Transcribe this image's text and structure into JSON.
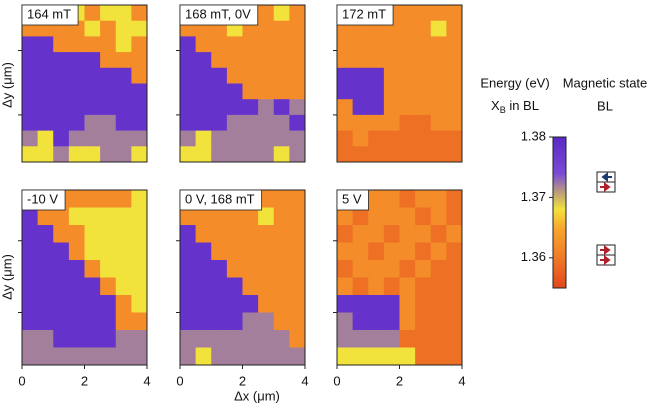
{
  "chart_data": {
    "type": "heatmap",
    "xlabel": "Δx (μm)",
    "ylabel": "Δy (μm)",
    "xlim": [
      0,
      4
    ],
    "xticks": [
      0,
      2,
      4
    ],
    "panels": [
      {
        "label": "164 mT",
        "values": [
          [
            1.362,
            1.362,
            1.362,
            1.368,
            1.362,
            1.368,
            1.368,
            1.362
          ],
          [
            1.362,
            1.362,
            1.362,
            1.362,
            1.368,
            1.362,
            1.368,
            1.368
          ],
          [
            1.378,
            1.378,
            1.362,
            1.362,
            1.362,
            1.362,
            1.368,
            1.362
          ],
          [
            1.378,
            1.378,
            1.378,
            1.378,
            1.378,
            1.362,
            1.362,
            1.362
          ],
          [
            1.378,
            1.378,
            1.378,
            1.378,
            1.378,
            1.378,
            1.378,
            1.362
          ],
          [
            1.378,
            1.378,
            1.378,
            1.378,
            1.378,
            1.378,
            1.378,
            1.378
          ],
          [
            1.378,
            1.378,
            1.378,
            1.378,
            1.378,
            1.378,
            1.378,
            1.378
          ],
          [
            1.378,
            1.378,
            1.378,
            1.378,
            1.372,
            1.372,
            1.378,
            1.378
          ],
          [
            1.372,
            1.368,
            1.378,
            1.372,
            1.372,
            1.372,
            1.372,
            1.372
          ],
          [
            1.368,
            1.368,
            1.372,
            1.368,
            1.368,
            1.372,
            1.372,
            1.368
          ]
        ]
      },
      {
        "label": "168 mT, 0V",
        "values": [
          [
            1.362,
            1.362,
            1.362,
            1.362,
            1.362,
            1.362,
            1.368,
            1.362
          ],
          [
            1.362,
            1.362,
            1.362,
            1.368,
            1.362,
            1.362,
            1.362,
            1.362
          ],
          [
            1.378,
            1.362,
            1.362,
            1.362,
            1.362,
            1.362,
            1.362,
            1.362
          ],
          [
            1.378,
            1.378,
            1.362,
            1.362,
            1.362,
            1.362,
            1.362,
            1.362
          ],
          [
            1.378,
            1.378,
            1.378,
            1.362,
            1.362,
            1.362,
            1.362,
            1.362
          ],
          [
            1.378,
            1.378,
            1.378,
            1.378,
            1.362,
            1.362,
            1.362,
            1.362
          ],
          [
            1.378,
            1.378,
            1.378,
            1.378,
            1.378,
            1.372,
            1.378,
            1.372
          ],
          [
            1.378,
            1.378,
            1.378,
            1.372,
            1.372,
            1.372,
            1.372,
            1.378
          ],
          [
            1.372,
            1.368,
            1.372,
            1.372,
            1.372,
            1.372,
            1.372,
            1.372
          ],
          [
            1.368,
            1.368,
            1.372,
            1.372,
            1.372,
            1.372,
            1.368,
            1.372
          ]
        ]
      },
      {
        "label": "172 mT",
        "values": [
          [
            1.362,
            1.362,
            1.362,
            1.362,
            1.362,
            1.362,
            1.362,
            1.362
          ],
          [
            1.362,
            1.362,
            1.362,
            1.362,
            1.362,
            1.362,
            1.368,
            1.362
          ],
          [
            1.362,
            1.362,
            1.362,
            1.362,
            1.362,
            1.362,
            1.362,
            1.362
          ],
          [
            1.362,
            1.362,
            1.362,
            1.362,
            1.362,
            1.362,
            1.362,
            1.362
          ],
          [
            1.378,
            1.378,
            1.378,
            1.362,
            1.362,
            1.362,
            1.362,
            1.362
          ],
          [
            1.378,
            1.378,
            1.378,
            1.362,
            1.362,
            1.362,
            1.362,
            1.362
          ],
          [
            1.362,
            1.378,
            1.378,
            1.362,
            1.362,
            1.362,
            1.362,
            1.362
          ],
          [
            1.362,
            1.362,
            1.362,
            1.362,
            1.359,
            1.359,
            1.362,
            1.362
          ],
          [
            1.359,
            1.362,
            1.359,
            1.359,
            1.359,
            1.359,
            1.359,
            1.359
          ],
          [
            1.359,
            1.359,
            1.359,
            1.359,
            1.359,
            1.359,
            1.359,
            1.359
          ]
        ]
      },
      {
        "label": "-10 V",
        "values": [
          [
            1.362,
            1.362,
            1.362,
            1.362,
            1.362,
            1.362,
            1.362,
            1.368
          ],
          [
            1.378,
            1.362,
            1.362,
            1.368,
            1.368,
            1.368,
            1.368,
            1.368
          ],
          [
            1.378,
            1.378,
            1.362,
            1.362,
            1.368,
            1.368,
            1.368,
            1.368
          ],
          [
            1.378,
            1.378,
            1.378,
            1.362,
            1.368,
            1.368,
            1.368,
            1.368
          ],
          [
            1.378,
            1.378,
            1.378,
            1.378,
            1.362,
            1.368,
            1.368,
            1.368
          ],
          [
            1.378,
            1.378,
            1.378,
            1.378,
            1.378,
            1.362,
            1.368,
            1.368
          ],
          [
            1.378,
            1.378,
            1.378,
            1.378,
            1.378,
            1.378,
            1.362,
            1.368
          ],
          [
            1.378,
            1.378,
            1.378,
            1.378,
            1.378,
            1.378,
            1.362,
            1.362
          ],
          [
            1.372,
            1.372,
            1.378,
            1.378,
            1.378,
            1.378,
            1.372,
            1.372
          ],
          [
            1.372,
            1.372,
            1.372,
            1.372,
            1.372,
            1.372,
            1.372,
            1.372
          ]
        ]
      },
      {
        "label": "0 V, 168 mT",
        "values": [
          [
            1.362,
            1.362,
            1.362,
            1.362,
            1.362,
            1.362,
            1.362,
            1.362
          ],
          [
            1.362,
            1.362,
            1.362,
            1.362,
            1.362,
            1.368,
            1.362,
            1.362
          ],
          [
            1.378,
            1.362,
            1.362,
            1.362,
            1.362,
            1.362,
            1.362,
            1.362
          ],
          [
            1.378,
            1.378,
            1.362,
            1.362,
            1.362,
            1.362,
            1.362,
            1.362
          ],
          [
            1.378,
            1.378,
            1.378,
            1.362,
            1.362,
            1.362,
            1.362,
            1.362
          ],
          [
            1.378,
            1.378,
            1.378,
            1.378,
            1.362,
            1.362,
            1.362,
            1.362
          ],
          [
            1.378,
            1.378,
            1.378,
            1.378,
            1.378,
            1.362,
            1.362,
            1.362
          ],
          [
            1.378,
            1.378,
            1.378,
            1.378,
            1.372,
            1.372,
            1.362,
            1.362
          ],
          [
            1.372,
            1.372,
            1.372,
            1.372,
            1.372,
            1.372,
            1.372,
            1.362
          ],
          [
            1.372,
            1.368,
            1.372,
            1.372,
            1.372,
            1.372,
            1.372,
            1.372
          ]
        ]
      },
      {
        "label": "5 V",
        "values": [
          [
            1.359,
            1.362,
            1.362,
            1.362,
            1.359,
            1.362,
            1.362,
            1.359
          ],
          [
            1.362,
            1.359,
            1.362,
            1.362,
            1.362,
            1.359,
            1.362,
            1.359
          ],
          [
            1.359,
            1.362,
            1.362,
            1.359,
            1.362,
            1.362,
            1.359,
            1.362
          ],
          [
            1.362,
            1.362,
            1.359,
            1.362,
            1.362,
            1.359,
            1.362,
            1.359
          ],
          [
            1.359,
            1.362,
            1.362,
            1.362,
            1.359,
            1.362,
            1.359,
            1.359
          ],
          [
            1.362,
            1.359,
            1.362,
            1.359,
            1.362,
            1.359,
            1.359,
            1.359
          ],
          [
            1.378,
            1.378,
            1.378,
            1.378,
            1.362,
            1.359,
            1.359,
            1.359
          ],
          [
            1.372,
            1.378,
            1.378,
            1.378,
            1.362,
            1.359,
            1.359,
            1.359
          ],
          [
            1.372,
            1.372,
            1.372,
            1.372,
            1.359,
            1.359,
            1.359,
            1.359
          ],
          [
            1.368,
            1.368,
            1.368,
            1.368,
            1.368,
            1.359,
            1.359,
            1.359
          ]
        ]
      }
    ],
    "colorbar": {
      "title": "Energy (eV)",
      "subtitle": {
        "main": "X",
        "sub": "B",
        "rest": " in BL"
      },
      "lim": [
        1.355,
        1.38
      ],
      "ticks": [
        1.36,
        1.37,
        1.38
      ],
      "colormap": [
        [
          1.355,
          "#e2471c"
        ],
        [
          1.36,
          "#f07a26"
        ],
        [
          1.365,
          "#f7a82e"
        ],
        [
          1.368,
          "#f2e23c"
        ],
        [
          1.371,
          "#b8997e"
        ],
        [
          1.374,
          "#7b4ad6"
        ],
        [
          1.38,
          "#5a28c6"
        ]
      ]
    },
    "magnetic_state": {
      "title": "Magnetic state",
      "subtitle": "BL"
    }
  }
}
